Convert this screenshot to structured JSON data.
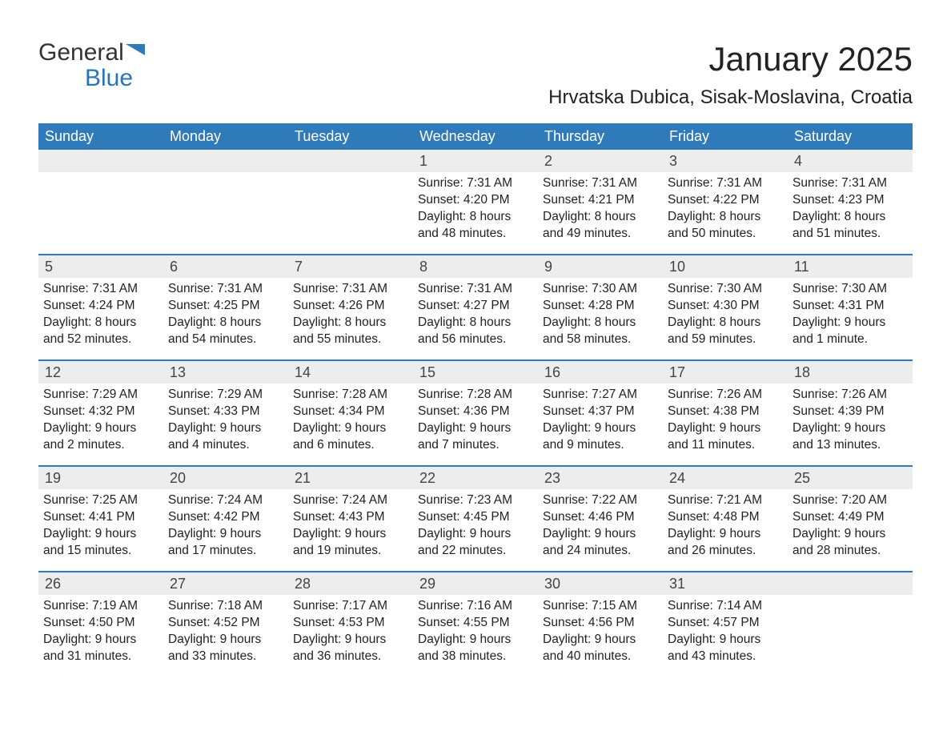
{
  "brand": {
    "part1": "General",
    "part2": "Blue"
  },
  "colors": {
    "header_bg": "#2f7ab8",
    "header_text": "#ffffff",
    "daynum_bg": "#ededed",
    "text": "#222222",
    "week_border": "#2f7ab8",
    "logo_gray": "#333333",
    "logo_blue": "#2876b9"
  },
  "typography": {
    "month_title_fontsize": 42,
    "location_fontsize": 24,
    "weekday_fontsize": 18,
    "daynum_fontsize": 18,
    "body_fontsize": 15.5
  },
  "title": "January 2025",
  "location": "Hrvatska Dubica, Sisak-Moslavina, Croatia",
  "weekdays": [
    "Sunday",
    "Monday",
    "Tuesday",
    "Wednesday",
    "Thursday",
    "Friday",
    "Saturday"
  ],
  "weeks": [
    [
      null,
      null,
      null,
      {
        "n": "1",
        "sunrise": "Sunrise: 7:31 AM",
        "sunset": "Sunset: 4:20 PM",
        "d1": "Daylight: 8 hours",
        "d2": "and 48 minutes."
      },
      {
        "n": "2",
        "sunrise": "Sunrise: 7:31 AM",
        "sunset": "Sunset: 4:21 PM",
        "d1": "Daylight: 8 hours",
        "d2": "and 49 minutes."
      },
      {
        "n": "3",
        "sunrise": "Sunrise: 7:31 AM",
        "sunset": "Sunset: 4:22 PM",
        "d1": "Daylight: 8 hours",
        "d2": "and 50 minutes."
      },
      {
        "n": "4",
        "sunrise": "Sunrise: 7:31 AM",
        "sunset": "Sunset: 4:23 PM",
        "d1": "Daylight: 8 hours",
        "d2": "and 51 minutes."
      }
    ],
    [
      {
        "n": "5",
        "sunrise": "Sunrise: 7:31 AM",
        "sunset": "Sunset: 4:24 PM",
        "d1": "Daylight: 8 hours",
        "d2": "and 52 minutes."
      },
      {
        "n": "6",
        "sunrise": "Sunrise: 7:31 AM",
        "sunset": "Sunset: 4:25 PM",
        "d1": "Daylight: 8 hours",
        "d2": "and 54 minutes."
      },
      {
        "n": "7",
        "sunrise": "Sunrise: 7:31 AM",
        "sunset": "Sunset: 4:26 PM",
        "d1": "Daylight: 8 hours",
        "d2": "and 55 minutes."
      },
      {
        "n": "8",
        "sunrise": "Sunrise: 7:31 AM",
        "sunset": "Sunset: 4:27 PM",
        "d1": "Daylight: 8 hours",
        "d2": "and 56 minutes."
      },
      {
        "n": "9",
        "sunrise": "Sunrise: 7:30 AM",
        "sunset": "Sunset: 4:28 PM",
        "d1": "Daylight: 8 hours",
        "d2": "and 58 minutes."
      },
      {
        "n": "10",
        "sunrise": "Sunrise: 7:30 AM",
        "sunset": "Sunset: 4:30 PM",
        "d1": "Daylight: 8 hours",
        "d2": "and 59 minutes."
      },
      {
        "n": "11",
        "sunrise": "Sunrise: 7:30 AM",
        "sunset": "Sunset: 4:31 PM",
        "d1": "Daylight: 9 hours",
        "d2": "and 1 minute."
      }
    ],
    [
      {
        "n": "12",
        "sunrise": "Sunrise: 7:29 AM",
        "sunset": "Sunset: 4:32 PM",
        "d1": "Daylight: 9 hours",
        "d2": "and 2 minutes."
      },
      {
        "n": "13",
        "sunrise": "Sunrise: 7:29 AM",
        "sunset": "Sunset: 4:33 PM",
        "d1": "Daylight: 9 hours",
        "d2": "and 4 minutes."
      },
      {
        "n": "14",
        "sunrise": "Sunrise: 7:28 AM",
        "sunset": "Sunset: 4:34 PM",
        "d1": "Daylight: 9 hours",
        "d2": "and 6 minutes."
      },
      {
        "n": "15",
        "sunrise": "Sunrise: 7:28 AM",
        "sunset": "Sunset: 4:36 PM",
        "d1": "Daylight: 9 hours",
        "d2": "and 7 minutes."
      },
      {
        "n": "16",
        "sunrise": "Sunrise: 7:27 AM",
        "sunset": "Sunset: 4:37 PM",
        "d1": "Daylight: 9 hours",
        "d2": "and 9 minutes."
      },
      {
        "n": "17",
        "sunrise": "Sunrise: 7:26 AM",
        "sunset": "Sunset: 4:38 PM",
        "d1": "Daylight: 9 hours",
        "d2": "and 11 minutes."
      },
      {
        "n": "18",
        "sunrise": "Sunrise: 7:26 AM",
        "sunset": "Sunset: 4:39 PM",
        "d1": "Daylight: 9 hours",
        "d2": "and 13 minutes."
      }
    ],
    [
      {
        "n": "19",
        "sunrise": "Sunrise: 7:25 AM",
        "sunset": "Sunset: 4:41 PM",
        "d1": "Daylight: 9 hours",
        "d2": "and 15 minutes."
      },
      {
        "n": "20",
        "sunrise": "Sunrise: 7:24 AM",
        "sunset": "Sunset: 4:42 PM",
        "d1": "Daylight: 9 hours",
        "d2": "and 17 minutes."
      },
      {
        "n": "21",
        "sunrise": "Sunrise: 7:24 AM",
        "sunset": "Sunset: 4:43 PM",
        "d1": "Daylight: 9 hours",
        "d2": "and 19 minutes."
      },
      {
        "n": "22",
        "sunrise": "Sunrise: 7:23 AM",
        "sunset": "Sunset: 4:45 PM",
        "d1": "Daylight: 9 hours",
        "d2": "and 22 minutes."
      },
      {
        "n": "23",
        "sunrise": "Sunrise: 7:22 AM",
        "sunset": "Sunset: 4:46 PM",
        "d1": "Daylight: 9 hours",
        "d2": "and 24 minutes."
      },
      {
        "n": "24",
        "sunrise": "Sunrise: 7:21 AM",
        "sunset": "Sunset: 4:48 PM",
        "d1": "Daylight: 9 hours",
        "d2": "and 26 minutes."
      },
      {
        "n": "25",
        "sunrise": "Sunrise: 7:20 AM",
        "sunset": "Sunset: 4:49 PM",
        "d1": "Daylight: 9 hours",
        "d2": "and 28 minutes."
      }
    ],
    [
      {
        "n": "26",
        "sunrise": "Sunrise: 7:19 AM",
        "sunset": "Sunset: 4:50 PM",
        "d1": "Daylight: 9 hours",
        "d2": "and 31 minutes."
      },
      {
        "n": "27",
        "sunrise": "Sunrise: 7:18 AM",
        "sunset": "Sunset: 4:52 PM",
        "d1": "Daylight: 9 hours",
        "d2": "and 33 minutes."
      },
      {
        "n": "28",
        "sunrise": "Sunrise: 7:17 AM",
        "sunset": "Sunset: 4:53 PM",
        "d1": "Daylight: 9 hours",
        "d2": "and 36 minutes."
      },
      {
        "n": "29",
        "sunrise": "Sunrise: 7:16 AM",
        "sunset": "Sunset: 4:55 PM",
        "d1": "Daylight: 9 hours",
        "d2": "and 38 minutes."
      },
      {
        "n": "30",
        "sunrise": "Sunrise: 7:15 AM",
        "sunset": "Sunset: 4:56 PM",
        "d1": "Daylight: 9 hours",
        "d2": "and 40 minutes."
      },
      {
        "n": "31",
        "sunrise": "Sunrise: 7:14 AM",
        "sunset": "Sunset: 4:57 PM",
        "d1": "Daylight: 9 hours",
        "d2": "and 43 minutes."
      },
      null
    ]
  ]
}
